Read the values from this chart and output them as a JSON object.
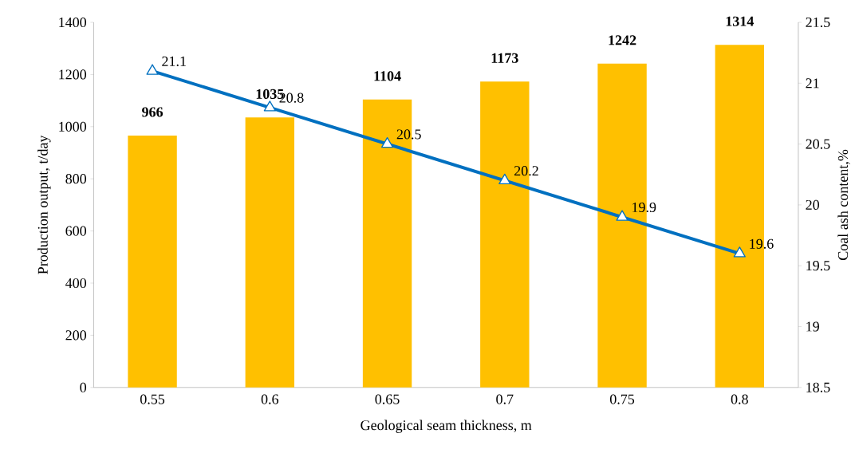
{
  "chart_data": {
    "type": "bar",
    "xlabel": "Geological seam thickness, m",
    "ylabel": "Production output, t/day",
    "y2label": "Coal ash content,%",
    "categories": [
      "0.55",
      "0.6",
      "0.65",
      "0.7",
      "0.75",
      "0.8"
    ],
    "series": [
      {
        "color": "#ffc000",
        "values": [
          966,
          1035,
          1104,
          1173,
          1242,
          1314
        ]
      },
      {
        "type": "line",
        "axis": "y2",
        "color": "#0070c0",
        "marker": "triangle",
        "values": [
          21.1,
          20.8,
          20.5,
          20.2,
          19.9,
          19.6
        ]
      }
    ],
    "ylim": [
      0,
      1400
    ],
    "yticks": [
      0,
      200,
      400,
      600,
      800,
      1000,
      1200,
      1400
    ],
    "y2lim": [
      18.5,
      21.5
    ],
    "y2ticks": [
      18.5,
      19,
      19.5,
      20,
      20.5,
      21,
      21.5
    ],
    "data_labels": true
  }
}
